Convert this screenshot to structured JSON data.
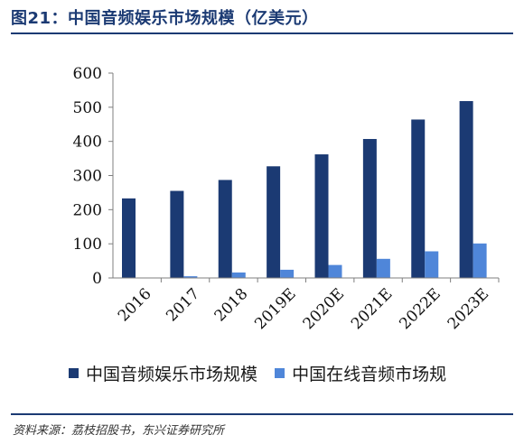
{
  "title": "图21：中国音频娱乐市场规模（亿美元）",
  "source": "资料来源：荔枝招股书，东兴证券研究所",
  "colors": {
    "series1": "#1b3a73",
    "series2": "#4f86d9",
    "rule": "#1b3a73"
  },
  "chart_data": {
    "type": "bar",
    "categories": [
      "2016",
      "2017",
      "2018",
      "2019E",
      "2020E",
      "2021E",
      "2022E",
      "2023E"
    ],
    "series": [
      {
        "name": "中国音频娱乐市场规模",
        "values": [
          233,
          255,
          287,
          327,
          362,
          407,
          464,
          518
        ]
      },
      {
        "name": "中国在线音频市场规",
        "values": [
          1,
          5,
          16,
          24,
          38,
          56,
          78,
          101
        ]
      }
    ],
    "ylim": [
      0,
      600
    ],
    "yticks": [
      0,
      100,
      200,
      300,
      400,
      500,
      600
    ],
    "grid": false,
    "legend": "bottom"
  }
}
